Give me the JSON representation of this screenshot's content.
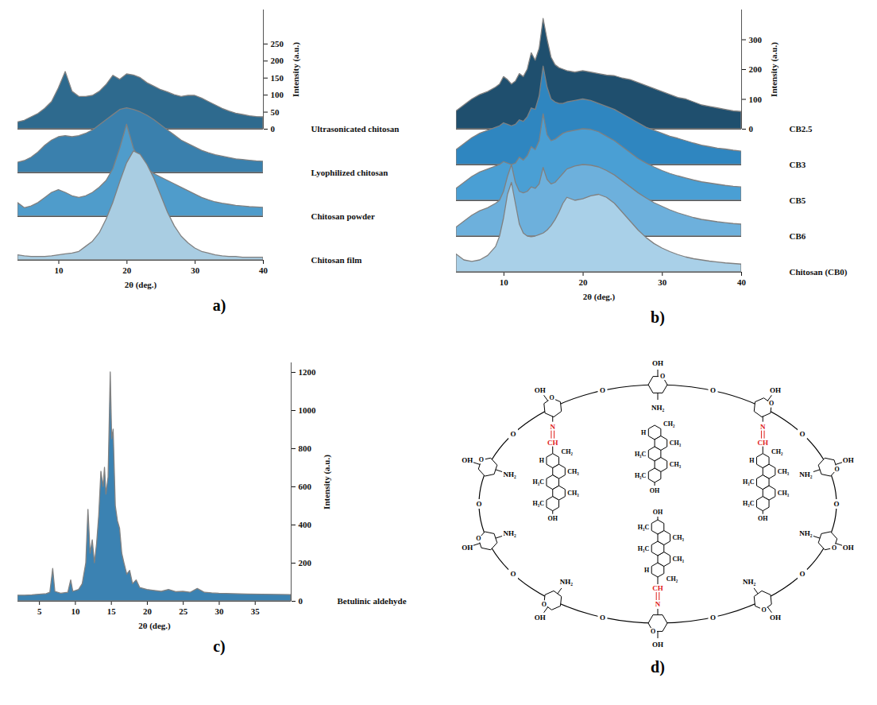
{
  "chart_data": [
    {
      "type": "area",
      "title": "a)",
      "x": [
        4,
        5,
        6,
        7,
        8,
        9,
        10,
        11,
        12,
        13,
        14,
        15,
        16,
        17,
        18,
        19,
        20,
        21,
        22,
        23,
        24,
        25,
        26,
        27,
        28,
        29,
        30,
        31,
        32,
        33,
        34,
        35,
        36,
        37,
        38,
        39,
        40
      ],
      "xlim": [
        4,
        40
      ],
      "xticks": [
        10,
        20,
        30,
        40
      ],
      "xlabel": "2θ (deg.)",
      "ylim": [
        0,
        350
      ],
      "yticks": [
        0,
        50,
        100,
        150,
        200,
        250
      ],
      "ylabel": "Intensity (a.u.)",
      "series": [
        {
          "name": "Ultrasonicated chitosan",
          "color": "#2e6a8e",
          "values": [
            20,
            25,
            35,
            45,
            60,
            80,
            120,
            168,
            110,
            95,
            95,
            98,
            110,
            130,
            157,
            145,
            161,
            158,
            150,
            135,
            125,
            115,
            108,
            100,
            95,
            98,
            98,
            90,
            80,
            70,
            60,
            52,
            46,
            42,
            38,
            36,
            35
          ]
        },
        {
          "name": "Lyophilized chitosan",
          "color": "#3a80ad",
          "values": [
            30,
            35,
            45,
            60,
            80,
            95,
            105,
            108,
            105,
            108,
            115,
            125,
            140,
            155,
            170,
            185,
            190,
            185,
            178,
            168,
            155,
            140,
            125,
            110,
            95,
            85,
            75,
            65,
            58,
            52,
            48,
            44,
            40,
            38,
            36,
            34,
            33
          ]
        },
        {
          "name": "Chitosan powder",
          "color": "#4f9ccb",
          "values": [
            40,
            25,
            30,
            40,
            55,
            70,
            78,
            70,
            60,
            55,
            60,
            70,
            85,
            105,
            140,
            200,
            270,
            200,
            160,
            140,
            125,
            115,
            105,
            95,
            85,
            75,
            65,
            55,
            48,
            42,
            38,
            35,
            32,
            30,
            28,
            27,
            26
          ]
        },
        {
          "name": "Chitosan film",
          "color": "#a9cde2",
          "values": [
            15,
            12,
            10,
            10,
            10,
            12,
            15,
            18,
            20,
            25,
            40,
            55,
            80,
            120,
            170,
            230,
            285,
            320,
            310,
            280,
            240,
            190,
            140,
            100,
            70,
            50,
            35,
            25,
            20,
            15,
            12,
            10,
            10,
            8,
            8,
            8,
            8
          ]
        }
      ]
    },
    {
      "type": "area",
      "title": "b)",
      "x": [
        4,
        5,
        6,
        7,
        8,
        9,
        9.5,
        10,
        10.5,
        11,
        11.5,
        12,
        12.5,
        13,
        13.5,
        14,
        14.5,
        15,
        15.5,
        16,
        16.5,
        17,
        17.5,
        18,
        19,
        20,
        21,
        22,
        23,
        24,
        25,
        26,
        27,
        28,
        29,
        30,
        31,
        32,
        33,
        34,
        35,
        36,
        37,
        38,
        39,
        40
      ],
      "xlim": [
        4,
        40
      ],
      "xticks": [
        10,
        20,
        30,
        40
      ],
      "xlabel": "2θ (deg.)",
      "ylim": [
        0,
        400
      ],
      "yticks": [
        0,
        100,
        200,
        300
      ],
      "ylabel": "Intensity (a.u.)",
      "series": [
        {
          "name": "CB2.5",
          "color": "#1f4f6e",
          "values": [
            60,
            80,
            100,
            115,
            125,
            140,
            150,
            175,
            165,
            150,
            160,
            185,
            175,
            200,
            255,
            230,
            270,
            370,
            300,
            240,
            215,
            205,
            200,
            195,
            190,
            195,
            190,
            185,
            180,
            178,
            170,
            165,
            155,
            145,
            135,
            125,
            115,
            105,
            100,
            90,
            80,
            75,
            70,
            65,
            60,
            58
          ]
        },
        {
          "name": "CB3",
          "color": "#2f86c0",
          "values": [
            50,
            70,
            90,
            105,
            115,
            125,
            130,
            140,
            135,
            130,
            135,
            150,
            145,
            160,
            190,
            185,
            230,
            330,
            260,
            220,
            210,
            205,
            205,
            210,
            215,
            220,
            215,
            205,
            195,
            185,
            170,
            155,
            140,
            125,
            115,
            105,
            95,
            88,
            80,
            72,
            65,
            60,
            55,
            52,
            48,
            45
          ]
        },
        {
          "name": "CB5",
          "color": "#4a9fd4",
          "values": [
            40,
            60,
            80,
            95,
            105,
            115,
            120,
            130,
            125,
            120,
            125,
            145,
            135,
            150,
            180,
            170,
            200,
            290,
            220,
            200,
            205,
            215,
            225,
            230,
            235,
            240,
            238,
            230,
            215,
            200,
            180,
            160,
            140,
            125,
            112,
            100,
            90,
            82,
            75,
            68,
            62,
            58,
            54,
            50,
            47,
            45
          ]
        },
        {
          "name": "CB6",
          "color": "#6db0dc",
          "values": [
            30,
            50,
            70,
            85,
            95,
            110,
            120,
            150,
            200,
            240,
            180,
            150,
            145,
            150,
            165,
            160,
            175,
            230,
            190,
            175,
            180,
            195,
            210,
            225,
            235,
            240,
            238,
            232,
            220,
            205,
            185,
            165,
            145,
            128,
            112,
            100,
            88,
            78,
            70,
            62,
            56,
            52,
            48,
            45,
            42,
            40
          ]
        },
        {
          "name": "Chitosan (CB0)",
          "color": "#a9d0e8",
          "values": [
            60,
            40,
            35,
            40,
            55,
            85,
            120,
            180,
            260,
            300,
            230,
            160,
            130,
            120,
            118,
            120,
            125,
            130,
            140,
            155,
            175,
            200,
            230,
            250,
            240,
            245,
            255,
            260,
            250,
            230,
            200,
            170,
            140,
            115,
            95,
            80,
            68,
            58,
            50,
            44,
            40,
            36,
            33,
            30,
            28,
            26
          ]
        }
      ]
    },
    {
      "type": "area",
      "title": "c)",
      "x": [
        2,
        3,
        4,
        5,
        6,
        6.5,
        6.9,
        7.2,
        8,
        9,
        9.4,
        9.7,
        10.5,
        11,
        11.5,
        11.8,
        12.1,
        12.4,
        12.7,
        13,
        13.3,
        13.6,
        13.9,
        14.1,
        14.3,
        14.6,
        14.9,
        15.1,
        15.3,
        15.6,
        15.9,
        16.2,
        16.5,
        16.8,
        17.2,
        17.6,
        18,
        18.5,
        19,
        20,
        21,
        22,
        23,
        24,
        25,
        26,
        27,
        28,
        29,
        30,
        32,
        34,
        36,
        38,
        40
      ],
      "xlim": [
        2,
        40
      ],
      "xticks": [
        5,
        10,
        15,
        20,
        25,
        30,
        35
      ],
      "xlabel": "2θ (deg.)",
      "ylim": [
        0,
        1250
      ],
      "yticks": [
        0,
        200,
        400,
        600,
        800,
        1000,
        1200
      ],
      "ylabel": "Intensity (a.u.)",
      "series": [
        {
          "name": "Betulinic aldehyde",
          "color": "#3b82b2",
          "values": [
            30,
            30,
            32,
            35,
            38,
            45,
            170,
            50,
            40,
            45,
            110,
            50,
            60,
            90,
            200,
            480,
            250,
            320,
            200,
            300,
            450,
            680,
            600,
            700,
            560,
            650,
            1200,
            850,
            900,
            500,
            420,
            380,
            250,
            200,
            140,
            160,
            90,
            110,
            70,
            60,
            55,
            50,
            60,
            48,
            50,
            45,
            65,
            45,
            42,
            40,
            38,
            36,
            35,
            34,
            33
          ]
        }
      ]
    }
  ],
  "diagram": {
    "title": "d)",
    "links": [
      "O",
      "O",
      "O",
      "O",
      "O",
      "O",
      "O",
      "O",
      "O",
      "O"
    ],
    "chitosan_units": [
      {
        "ring": "O",
        "outer": "OH",
        "inner": "NH₂"
      },
      {
        "ring": "O",
        "outer": "OH",
        "inner": [
          "N",
          "CH"
        ],
        "betulin": {
          "groups": [
            "H",
            "CH₃",
            "H₃C",
            "CH₃",
            "H₃C"
          ],
          "vinyl": "CH₂",
          "end": "OH"
        }
      },
      {
        "ring": "O",
        "outer": "OH",
        "inner": "NH₂"
      },
      {
        "ring": "O",
        "outer": "OH",
        "inner": "NH₂"
      },
      {
        "ring": "O",
        "outer": "OH",
        "inner": "NH₂"
      },
      {
        "ring": "O",
        "outer": "OH",
        "inner": [
          "N",
          "CH"
        ],
        "betulin": {
          "groups": [
            "H",
            "CH₃",
            "H₃C",
            "CH₃",
            "H₃C"
          ],
          "vinyl": "CH₂",
          "end": "OH"
        }
      },
      {
        "ring": "O",
        "outer": "OH",
        "inner": "NH₂"
      },
      {
        "ring": "O",
        "outer": "OH",
        "inner": "NH₂"
      },
      {
        "ring": "O",
        "outer": "OH",
        "inner": "NH₂"
      },
      {
        "ring": "O",
        "outer": "OH",
        "inner": [
          "N",
          "CH"
        ],
        "betulin": {
          "groups": [
            "H",
            "CH₃",
            "H₃C",
            "CH₃",
            "H₃C"
          ],
          "vinyl": "CH₂",
          "end": "OH"
        }
      }
    ],
    "free_betulin": [
      {
        "groups": [
          "H",
          "CH₃",
          "H₃C",
          "CH₃",
          "H₃C"
        ],
        "vinyl": "CH₂",
        "end": "OH"
      }
    ]
  }
}
